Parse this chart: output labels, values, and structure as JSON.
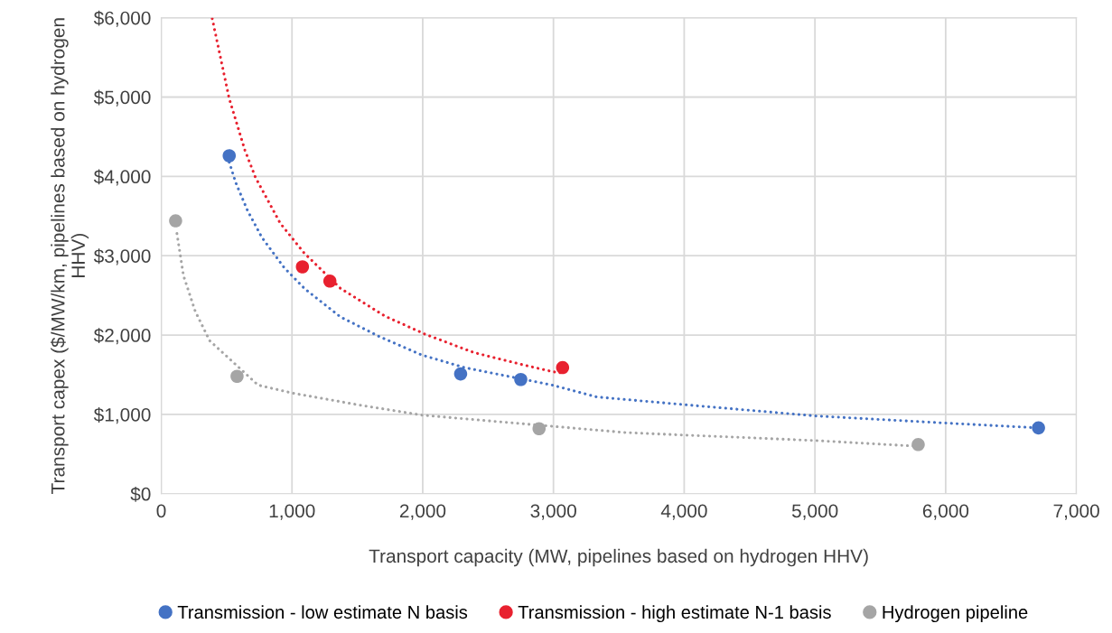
{
  "chart_data": {
    "type": "scatter",
    "xlabel": "Transport capacity (MW, pipelines based on hydrogen HHV)",
    "ylabel": "Transport capex ($/MW/km, pipelines based on hydrogen HHV)",
    "xlim": [
      0,
      7000
    ],
    "xticks": [
      0,
      {
        "value": 1000,
        "label": "1,000"
      },
      {
        "value": 2000,
        "label": "2,000"
      },
      {
        "value": 3000,
        "label": "3,000"
      },
      {
        "value": 4000,
        "label": "4,000"
      },
      {
        "value": 5000,
        "label": "5,000"
      },
      {
        "value": 6000,
        "label": "6,000"
      },
      {
        "value": 7000,
        "label": "7,000"
      }
    ],
    "ylim": [
      0,
      6000
    ],
    "yticks": [
      {
        "value": 0,
        "label": "$0"
      },
      {
        "value": 1000,
        "label": "$1,000"
      },
      {
        "value": 2000,
        "label": "$2,000"
      },
      {
        "value": 3000,
        "label": "$3,000"
      },
      {
        "value": 4000,
        "label": "$4,000"
      },
      {
        "value": 5000,
        "label": "$5,000"
      },
      {
        "value": 6000,
        "label": "$6,000"
      }
    ],
    "grid": true,
    "legend": "bottom",
    "marker": "circle",
    "series": [
      {
        "type": "line",
        "line_style": "dotted",
        "marker": "none",
        "color": "#4472c4",
        "x": [
          520,
          570,
          660,
          770,
          940,
          1100,
          1370,
          1670,
          1990,
          2320,
          2990,
          3330,
          4020,
          5010,
          6010,
          6710
        ],
        "values": [
          4180,
          3920,
          3570,
          3230,
          2850,
          2580,
          2230,
          1980,
          1750,
          1590,
          1370,
          1220,
          1120,
          980,
          890,
          830
        ]
      },
      {
        "type": "line",
        "line_style": "dotted",
        "marker": "none",
        "color": "#e8212f",
        "x": [
          390,
          520,
          640,
          720,
          910,
          1090,
          1370,
          1710,
          2020,
          2390,
          2780,
          2990,
          3070
        ],
        "values": [
          5990,
          4980,
          4330,
          3990,
          3410,
          3040,
          2590,
          2240,
          2010,
          1780,
          1620,
          1540,
          1520
        ]
      },
      {
        "type": "line",
        "line_style": "dotted",
        "marker": "none",
        "color": "#a5a5a5",
        "x": [
          120,
          170,
          260,
          370,
          740,
          1000,
          1510,
          2000,
          3560,
          5010,
          5770
        ],
        "values": [
          3280,
          2750,
          2300,
          1930,
          1370,
          1270,
          1120,
          990,
          770,
          670,
          600
        ]
      },
      {
        "name": "Transmission - low estimate N basis",
        "color": "#4472c4",
        "x": [
          520,
          2290,
          2750,
          6710
        ],
        "values": [
          4260,
          1510,
          1440,
          830
        ]
      },
      {
        "name": "Transmission - high estimate N-1 basis",
        "color": "#e8212f",
        "x": [
          1080,
          1290,
          3070
        ],
        "values": [
          2860,
          2680,
          1590
        ]
      },
      {
        "name": "Hydrogen pipeline",
        "color": "#a5a5a5",
        "x": [
          110,
          580,
          2890,
          5790
        ],
        "values": [
          3440,
          1480,
          820,
          620
        ]
      }
    ]
  }
}
